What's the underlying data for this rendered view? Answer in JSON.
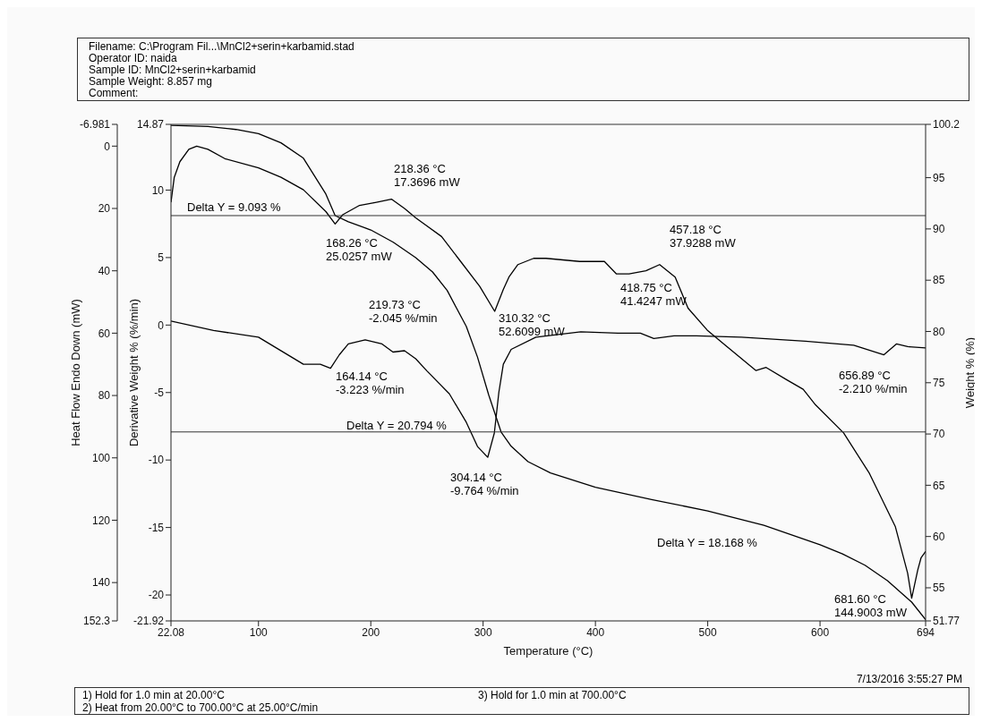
{
  "chart_data": {
    "type": "line",
    "xlabel": "Temperature (°C)",
    "ylabel": "Derivative Weight % (%/min)",
    "y2label": "Heat Flow Endo Down (mW)",
    "y3label": "Weight % (%)",
    "xlim": [
      22.08,
      694
    ],
    "xticks": [
      22.08,
      100,
      200,
      300,
      400,
      500,
      600,
      694
    ],
    "ylim": [
      -21.92,
      14.87
    ],
    "yticks": [
      -21.92,
      -20,
      -15,
      -10,
      -5,
      0,
      5,
      10,
      14.87
    ],
    "y2lim": [
      152.3,
      -6.981
    ],
    "y2ticks": [
      -6.981,
      0,
      20,
      40,
      60,
      80,
      100,
      120,
      140,
      152.3
    ],
    "y3lim": [
      51.77,
      100.2
    ],
    "y3ticks": [
      51.77,
      55,
      60,
      65,
      70,
      75,
      80,
      85,
      90,
      95,
      100.2
    ],
    "marker": "none",
    "line_style": "solid",
    "grid": false,
    "legend": false,
    "series": [
      {
        "color": "#000000",
        "axis": "y",
        "x": [
          22.08,
          60,
          100,
          140,
          155,
          164.14,
          172,
          180,
          195,
          210,
          219.73,
          230,
          240,
          250,
          270,
          285,
          295,
          304.14,
          310,
          314,
          318,
          325,
          347,
          387,
          420,
          440,
          452,
          470,
          490,
          530,
          587,
          630,
          656.89,
          668,
          678,
          694
        ],
        "values": [
          0.3,
          -0.4,
          -0.9,
          -2.9,
          -2.9,
          -3.2,
          -2.2,
          -1.4,
          -1.1,
          -1.4,
          -2.0,
          -1.9,
          -2.5,
          -3.4,
          -5.1,
          -7.2,
          -9.0,
          -9.8,
          -8,
          -5,
          -2.9,
          -1.8,
          -0.9,
          -0.5,
          -0.6,
          -0.6,
          -1.0,
          -0.8,
          -0.8,
          -0.9,
          -1.2,
          -1.5,
          -2.2,
          -1.4,
          -1.6,
          -1.7
        ]
      },
      {
        "color": "#000000",
        "axis": "y2",
        "x": [
          22.08,
          25,
          30,
          38,
          45,
          55,
          70,
          100,
          120,
          140,
          160,
          168.26,
          175,
          190,
          205,
          218.36,
          230,
          240,
          263,
          280,
          297,
          310.32,
          318,
          323,
          331,
          345,
          356,
          386,
          408,
          418.75,
          430,
          445,
          457.18,
          471,
          482.5,
          499.5,
          516,
          543,
          552,
          570.5,
          585,
          596,
          621,
          644,
          667,
          678,
          681.6,
          684,
          687,
          690,
          694
        ],
        "values": [
          18,
          10,
          5,
          1,
          0,
          1,
          4,
          7,
          10,
          14,
          21,
          25,
          22,
          19,
          18,
          17,
          20,
          23,
          29,
          37,
          45,
          53,
          46,
          42,
          38,
          36,
          36,
          37,
          37,
          41,
          41,
          40,
          38,
          42,
          52,
          59,
          64,
          72,
          71,
          75,
          78,
          83,
          92,
          105,
          122,
          137,
          145,
          141,
          136,
          132,
          130
        ]
      },
      {
        "color": "#000000",
        "axis": "y3",
        "x": [
          22.08,
          55,
          80,
          100,
          120,
          140,
          160,
          168.26,
          180,
          200,
          220,
          240,
          255,
          268,
          285,
          295,
          305,
          316,
          325,
          340,
          360,
          400,
          450,
          500,
          550,
          600,
          620,
          640,
          660,
          681.6,
          694
        ],
        "values": [
          100.1,
          100,
          99.7,
          99.3,
          98.4,
          96.9,
          93.4,
          91.3,
          90.7,
          89.9,
          88.7,
          87.2,
          85.8,
          84,
          80.5,
          77.5,
          73.8,
          70.2,
          68.8,
          67.3,
          66.2,
          64.8,
          63.6,
          62.5,
          61.1,
          59.2,
          58.3,
          57.2,
          55.7,
          53.6,
          51.9
        ]
      }
    ],
    "ref_lines": [
      {
        "axis": "y3",
        "value": 100.2
      },
      {
        "axis": "y3",
        "value": 91.3
      },
      {
        "axis": "y3",
        "value": 70.2
      }
    ],
    "annotations": [
      "Filename: C:\\Program Fil...\\MnCl2+serin+karbamid.stad",
      "Operator ID: naida",
      "Sample ID: MnCl2+serin+karbamid",
      "Sample Weight: 8.857 mg",
      "Comment:",
      "168.26 °C\n25.0257 mW",
      "218.36 °C\n17.3696 mW",
      "310.32 °C\n52.6099 mW",
      "418.75 °C\n41.4247 mW",
      "457.18 °C\n37.9288 mW",
      "681.60 °C\n144.9003 mW",
      "164.14 °C\n-3.223 %/min",
      "219.73 °C\n-2.045 %/min",
      "304.14 °C\n-9.764 %/min",
      "656.89 °C\n-2.210 %/min",
      "Delta Y = 9.093 %",
      "Delta Y = 20.794 %",
      "Delta Y = 18.168 %",
      "7/13/2016 3:55:27 PM",
      "1) Hold for 1.0 min at 20.00°C",
      "2) Heat from 20.00°C to 700.00°C at 25.00°C/min",
      "3) Hold for 1.0 min at 700.00°C"
    ]
  }
}
